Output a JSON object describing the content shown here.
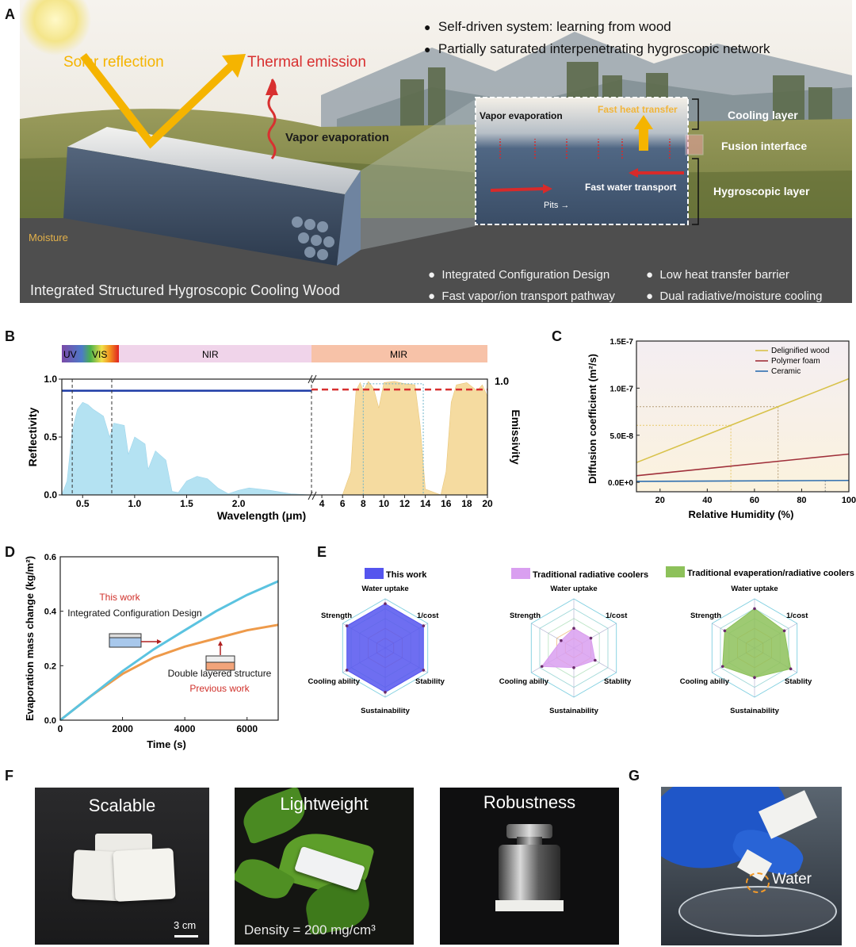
{
  "letters": {
    "a": "A",
    "b": "B",
    "c": "C",
    "d": "D",
    "e": "E",
    "f": "F",
    "g": "G"
  },
  "panelA": {
    "bullets_top": [
      "Self-driven system: learning from wood",
      "Partially saturated interpenetrating hygroscopic network"
    ],
    "solar": "Solar reflection",
    "thermal": "Thermal emission",
    "vapor_main": "Vapor evaporation",
    "moisture": "Moisture",
    "title": "Integrated  Structured Hygroscopic Cooling Wood",
    "inset_vapor": "Vapor evaporation",
    "inset_heat": "Fast heat transfer",
    "inset_water": "Fast water transport",
    "inset_pits": "Pits",
    "layer_cooling": "Cooling layer",
    "layer_fusion": "Fusion interface",
    "layer_hygro": "Hygroscopic layer",
    "bullets_bottom": [
      "Integrated Configuration Design",
      "Low heat transfer barrier",
      "Fast vapor/ion transport pathway",
      "Dual radiative/moisture cooling"
    ]
  },
  "chart_data": [
    {
      "type": "area",
      "bands": [
        "UV",
        "VIS",
        "NIR",
        "MIR"
      ],
      "xlabel": "Wavelength (μm)",
      "ylabel": "Reflectivity",
      "y2label": "Emissivity",
      "xticks_left": [
        "0.5",
        "1.0",
        "1.5",
        "2.0"
      ],
      "xticks_right": [
        "4",
        "6",
        "8",
        "10",
        "12",
        "14",
        "16",
        "18",
        "20"
      ],
      "yticks": [
        "0.0",
        "0.5",
        "1.0"
      ],
      "y2tick": "1.0",
      "ylim": [
        0,
        1.0
      ],
      "reflectivity_line": 0.9,
      "emissivity_line": 0.91,
      "solar_spectrum": [
        [
          0.3,
          0.0
        ],
        [
          0.35,
          0.12
        ],
        [
          0.4,
          0.55
        ],
        [
          0.45,
          0.74
        ],
        [
          0.5,
          0.8
        ],
        [
          0.55,
          0.78
        ],
        [
          0.6,
          0.74
        ],
        [
          0.7,
          0.68
        ],
        [
          0.76,
          0.5
        ],
        [
          0.8,
          0.62
        ],
        [
          0.9,
          0.6
        ],
        [
          0.94,
          0.35
        ],
        [
          1.0,
          0.5
        ],
        [
          1.1,
          0.44
        ],
        [
          1.13,
          0.22
        ],
        [
          1.2,
          0.38
        ],
        [
          1.3,
          0.3
        ],
        [
          1.36,
          0.03
        ],
        [
          1.42,
          0.02
        ],
        [
          1.5,
          0.12
        ],
        [
          1.6,
          0.16
        ],
        [
          1.7,
          0.14
        ],
        [
          1.8,
          0.06
        ],
        [
          1.9,
          0.01
        ],
        [
          2.0,
          0.04
        ],
        [
          2.1,
          0.06
        ],
        [
          2.3,
          0.04
        ],
        [
          2.5,
          0.01
        ],
        [
          2.7,
          0.0
        ]
      ],
      "atm_window": [
        [
          6.0,
          0.0
        ],
        [
          6.8,
          0.2
        ],
        [
          7.0,
          0.5
        ],
        [
          7.3,
          0.9
        ],
        [
          7.7,
          0.97
        ],
        [
          8.0,
          0.9
        ],
        [
          8.5,
          0.98
        ],
        [
          9.0,
          0.92
        ],
        [
          9.5,
          0.75
        ],
        [
          10.0,
          0.97
        ],
        [
          11.0,
          0.98
        ],
        [
          12.0,
          0.96
        ],
        [
          13.0,
          0.95
        ],
        [
          13.5,
          0.6
        ],
        [
          14.0,
          0.05
        ],
        [
          15.5,
          0.0
        ],
        [
          16.0,
          0.2
        ],
        [
          16.5,
          0.8
        ],
        [
          17.0,
          0.95
        ],
        [
          18.0,
          0.97
        ],
        [
          19.0,
          0.9
        ],
        [
          19.5,
          0.95
        ],
        [
          20.0,
          0.85
        ]
      ]
    },
    {
      "type": "line",
      "xlabel": "Relative Humidity (%)",
      "ylabel": "Diffusion coefficient (m²/s)",
      "xticks": [
        "20",
        "40",
        "60",
        "80",
        "100"
      ],
      "yticks": [
        "0.0E+0",
        "5.0E-8",
        "1.0E-7",
        "1.5E-7"
      ],
      "xlim": [
        10,
        100
      ],
      "ylim": [
        -1e-08,
        1.5e-07
      ],
      "series": [
        {
          "name": "Delignified wood",
          "color": "#d8c24a",
          "x": [
            10,
            100
          ],
          "y": [
            2.1e-08,
            1.1e-07
          ]
        },
        {
          "name": "Polymer foam",
          "color": "#a0303a",
          "x": [
            10,
            100
          ],
          "y": [
            7e-09,
            3e-08
          ]
        },
        {
          "name": "Ceramic",
          "color": "#2f6fb0",
          "x": [
            10,
            100
          ],
          "y": [
            1e-09,
            2e-09
          ]
        }
      ]
    },
    {
      "type": "line",
      "xlabel": "Time (s)",
      "ylabel": "Evaporation mass change (kg/m²)",
      "xticks": [
        "0",
        "2000",
        "4000",
        "6000"
      ],
      "yticks": [
        "0.0",
        "0.2",
        "0.4",
        "0.6"
      ],
      "xlim": [
        0,
        7000
      ],
      "ylim": [
        0,
        0.6
      ],
      "annotations": [
        "This work",
        "Integrated Configuration Design",
        "Double layered structure",
        "Previous work"
      ],
      "series": [
        {
          "name": "This work",
          "color": "#5bc3e0",
          "x": [
            0,
            1000,
            2000,
            3000,
            4000,
            5000,
            6000,
            7000
          ],
          "y": [
            0,
            0.09,
            0.18,
            0.26,
            0.33,
            0.4,
            0.46,
            0.51
          ]
        },
        {
          "name": "Previous work",
          "color": "#ee9a4a",
          "x": [
            0,
            1000,
            2000,
            2500,
            3000,
            4000,
            5000,
            6000,
            7000
          ],
          "y": [
            0,
            0.09,
            0.17,
            0.2,
            0.23,
            0.27,
            0.3,
            0.33,
            0.35
          ]
        }
      ]
    },
    {
      "type": "radar",
      "axes": [
        "Water uptake",
        "1/cost",
        "Stability",
        "Sustainability",
        "Cooling ability",
        "Strength"
      ],
      "axes_alt": [
        "Water uptake",
        "1/cost",
        "Stablity",
        "Sustainability",
        "Cooling abiliy",
        "Strength"
      ],
      "series": [
        {
          "name": "This work",
          "color": "#5555ee",
          "values": [
            0.9,
            0.9,
            0.9,
            0.9,
            0.9,
            0.9
          ]
        },
        {
          "name": "Traditional  radiative coolers",
          "color": "#d99ff0",
          "values": [
            0.4,
            0.4,
            0.5,
            0.4,
            0.75,
            0.3
          ]
        },
        {
          "name": "Traditional evaperation/radiative coolers",
          "color": "#8dc15a",
          "values": [
            0.8,
            0.7,
            0.85,
            0.6,
            0.75,
            0.7
          ]
        }
      ]
    }
  ],
  "panelF": {
    "scalable": "Scalable",
    "scale_bar": "3 cm",
    "lightweight": "Lightweight",
    "density": "Density = 200 mg/cm³",
    "robustness": "Robustness"
  },
  "panelG": {
    "water": "Water"
  }
}
